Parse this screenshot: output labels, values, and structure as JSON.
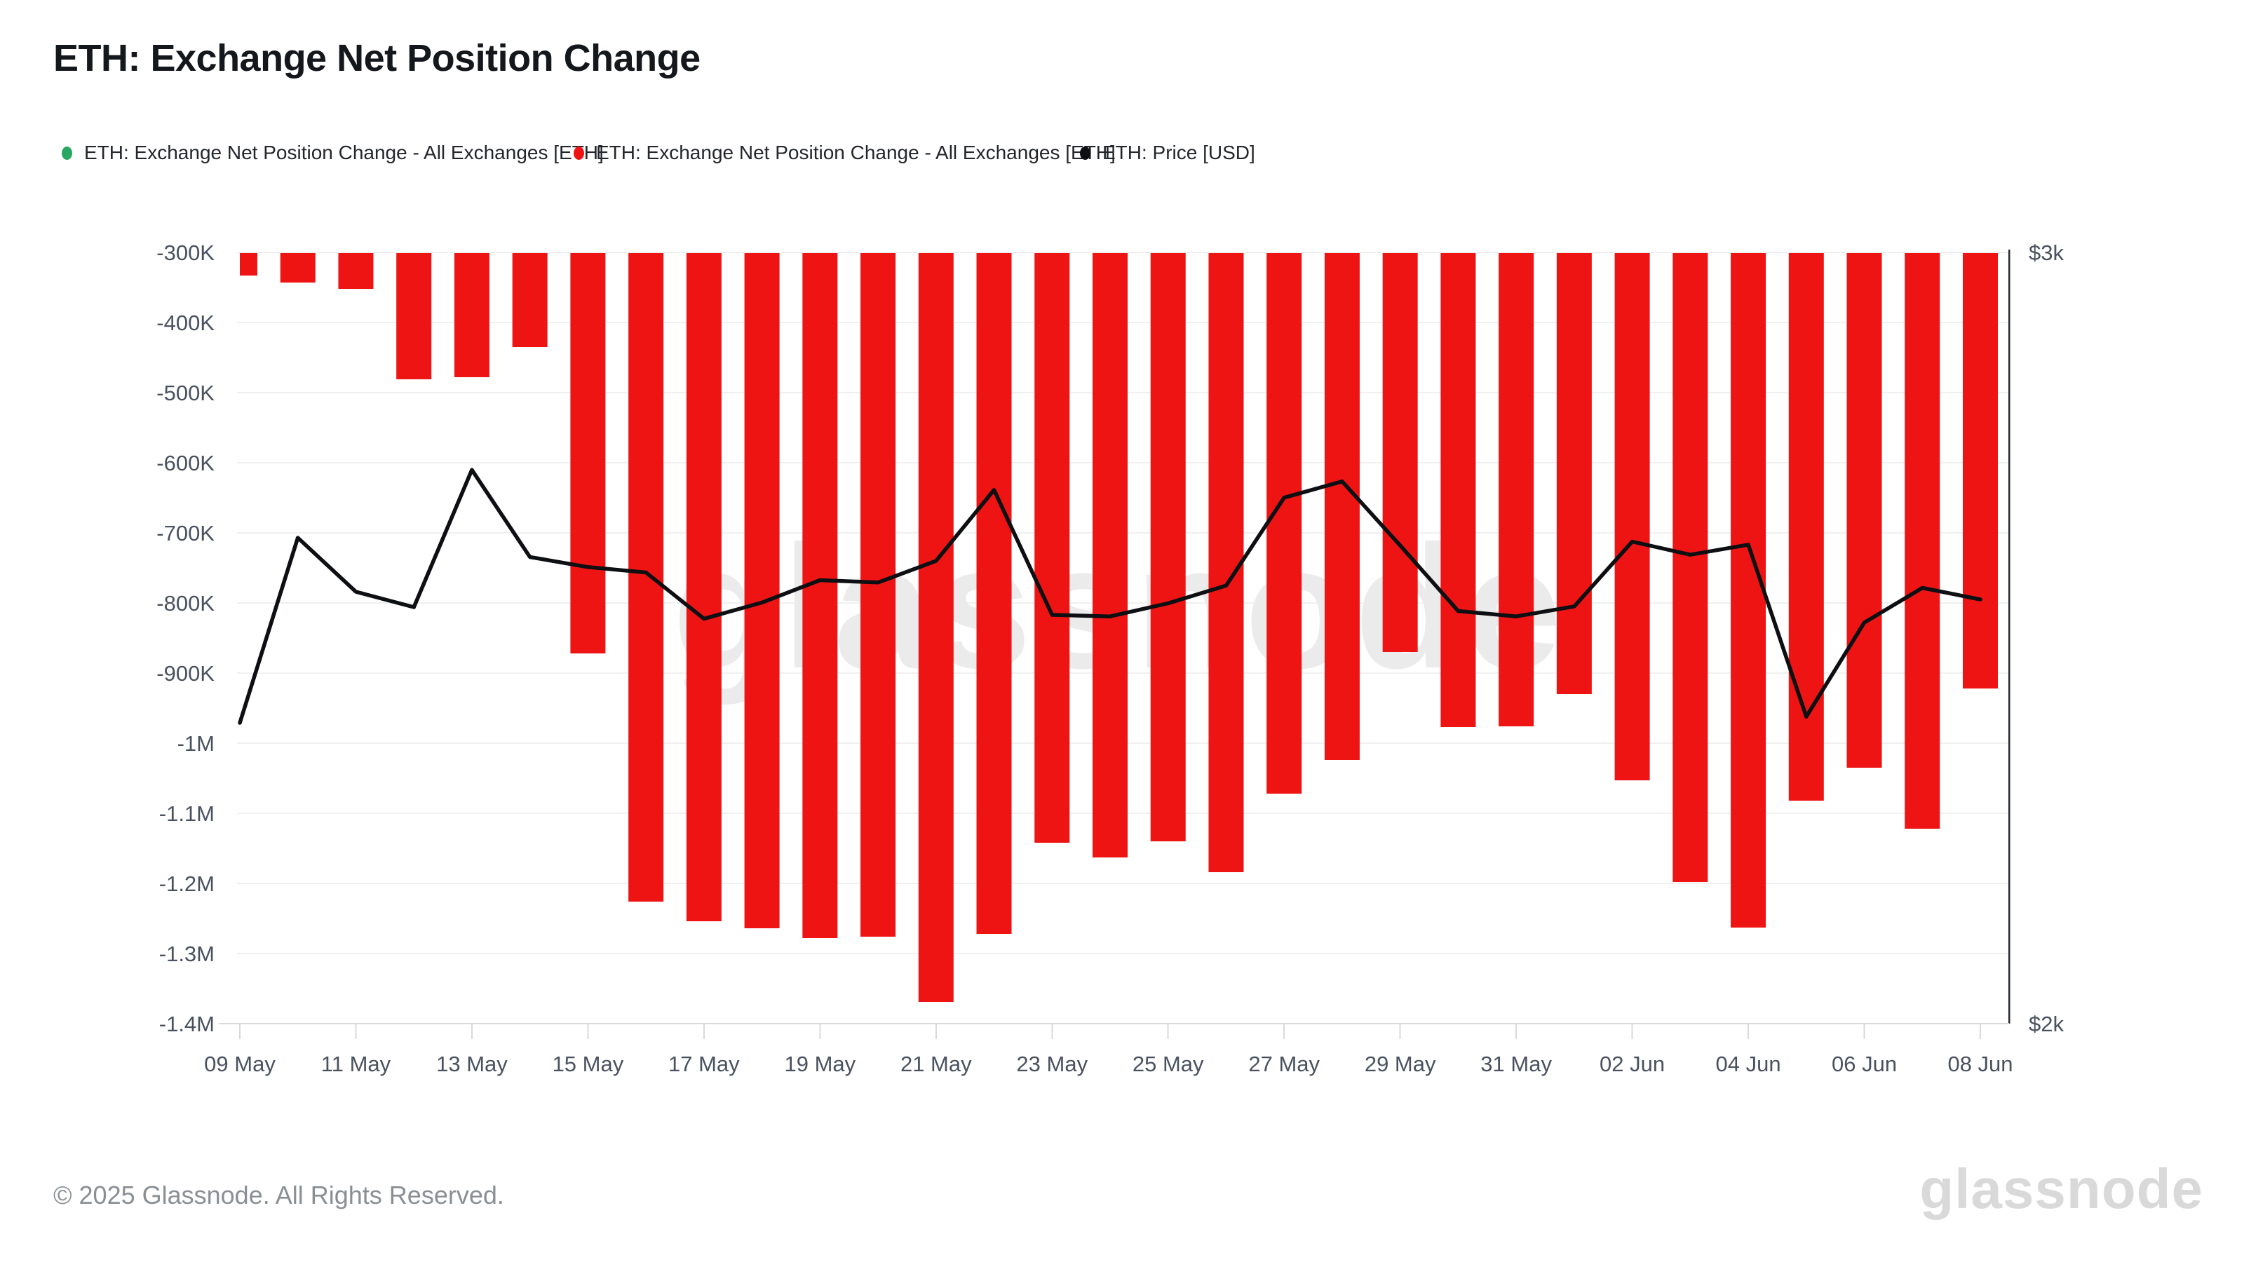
{
  "page": {
    "title": "ETH: Exchange Net Position Change"
  },
  "legend": [
    {
      "label": "ETH: Exchange Net Position Change - All Exchanges [ETH]",
      "color": "#27a862",
      "marker": "dot-icon"
    },
    {
      "label": "ETH: Exchange Net Position Change - All Exchanges [ETH]",
      "color": "#ee1414",
      "marker": "dot-icon"
    },
    {
      "label": "ETH: Price [USD]",
      "color": "#0d0f12",
      "marker": "dot-icon"
    }
  ],
  "watermark": "glassnode",
  "footer": {
    "copyright": "© 2025 Glassnode. All Rights Reserved.",
    "brand": "glassnode"
  },
  "chart_data": {
    "type": "bar",
    "title": "ETH: Exchange Net Position Change",
    "categories": [
      "09 May",
      "10 May",
      "11 May",
      "12 May",
      "13 May",
      "14 May",
      "15 May",
      "16 May",
      "17 May",
      "18 May",
      "19 May",
      "20 May",
      "21 May",
      "22 May",
      "23 May",
      "24 May",
      "25 May",
      "26 May",
      "27 May",
      "28 May",
      "29 May",
      "30 May",
      "31 May",
      "01 Jun",
      "02 Jun",
      "03 Jun",
      "04 Jun",
      "05 Jun",
      "06 Jun",
      "07 Jun",
      "08 Jun"
    ],
    "series": [
      {
        "name": "ETH: Exchange Net Position Change - All Exchanges [ETH]",
        "type": "bar",
        "axis": "left",
        "color": "#ee1414",
        "values": [
          -333000,
          -343000,
          -352000,
          -481000,
          -478000,
          -435000,
          -872000,
          -1226000,
          -1254000,
          -1264000,
          -1278000,
          -1276000,
          -1369000,
          -1272000,
          -1142000,
          -1163000,
          -1140000,
          -1184000,
          -1072000,
          -1024000,
          -870000,
          -977000,
          -976000,
          -930000,
          -1053000,
          -1198000,
          -1263000,
          -1082000,
          -1035000,
          -1122000,
          -922000
        ]
      },
      {
        "name": "ETH: Price [USD]",
        "type": "line",
        "axis": "right",
        "color": "#0d0f12",
        "values": [
          2390,
          2630,
          2560,
          2540,
          2718,
          2605,
          2592,
          2585,
          2525,
          2546,
          2575,
          2572,
          2600,
          2692,
          2530,
          2528,
          2545,
          2568,
          2682,
          2703,
          2620,
          2535,
          2528,
          2541,
          2625,
          2608,
          2621,
          2398,
          2520,
          2565,
          2550
        ]
      }
    ],
    "left_axis": {
      "tick_labels": [
        "-300K",
        "-400K",
        "-500K",
        "-600K",
        "-700K",
        "-800K",
        "-900K",
        "-1M",
        "-1.1M",
        "-1.2M",
        "-1.3M",
        "-1.4M"
      ],
      "tick_values": [
        -300000,
        -400000,
        -500000,
        -600000,
        -700000,
        -800000,
        -900000,
        -1000000,
        -1100000,
        -1200000,
        -1300000,
        -1400000
      ],
      "range": [
        -1400000,
        -300000
      ]
    },
    "right_axis": {
      "tick_labels": [
        "$3k",
        "$2k"
      ],
      "tick_values": [
        3000,
        2000
      ],
      "range": [
        2000,
        3000
      ]
    },
    "x_tick_labels": [
      "09 May",
      "11 May",
      "13 May",
      "15 May",
      "17 May",
      "19 May",
      "21 May",
      "23 May",
      "25 May",
      "27 May",
      "29 May",
      "31 May",
      "02 Jun",
      "04 Jun",
      "06 Jun",
      "08 Jun"
    ],
    "grid": true,
    "legend_position": "top",
    "colors": {
      "grid": "#f0f0f0",
      "axis_text": "#4a5260",
      "baseline": "#d9d9d9",
      "watermark": "#ebebeb",
      "background": "#ffffff"
    }
  }
}
